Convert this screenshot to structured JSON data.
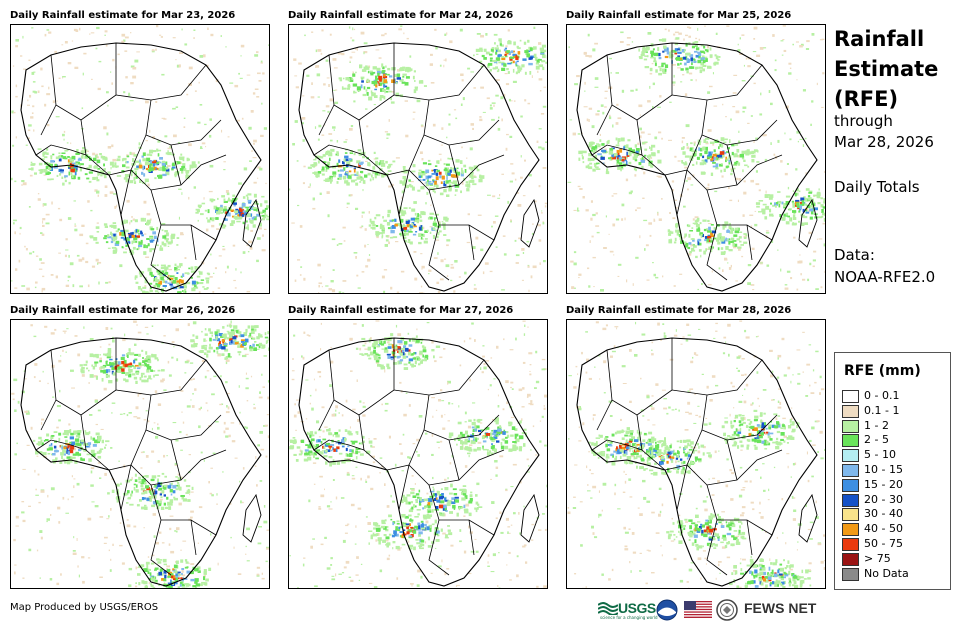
{
  "panels": [
    {
      "title": "Daily Rainfall estimate for Mar 23, 2026"
    },
    {
      "title": "Daily Rainfall estimate for Mar 24, 2026"
    },
    {
      "title": "Daily Rainfall estimate for Mar 25, 2026"
    },
    {
      "title": "Daily Rainfall estimate for Mar 26, 2026"
    },
    {
      "title": "Daily Rainfall estimate for Mar 27, 2026"
    },
    {
      "title": "Daily Rainfall estimate for Mar 28, 2026"
    }
  ],
  "side": {
    "title_line1": "Rainfall",
    "title_line2": "Estimate",
    "title_line3": "(RFE)",
    "through": "through",
    "date": "Mar 28, 2026",
    "totals": "Daily Totals",
    "data_label": "Data:",
    "data_source": "NOAA-RFE2.0"
  },
  "legend": {
    "title": "RFE (mm)",
    "items": [
      {
        "label": "0 - 0.1",
        "color": "#ffffff"
      },
      {
        "label": "0.1 - 1",
        "color": "#efdcc2"
      },
      {
        "label": "1 - 2",
        "color": "#b7f0a3"
      },
      {
        "label": "2 - 5",
        "color": "#69e35a"
      },
      {
        "label": "5 - 10",
        "color": "#b4eef2"
      },
      {
        "label": "10 - 15",
        "color": "#7fb8ec"
      },
      {
        "label": "15 - 20",
        "color": "#3d8fe2"
      },
      {
        "label": "20 - 30",
        "color": "#1552c7"
      },
      {
        "label": "30 - 40",
        "color": "#f8e38b"
      },
      {
        "label": "40 - 50",
        "color": "#f29a16"
      },
      {
        "label": "50 - 75",
        "color": "#ea3a0d"
      },
      {
        "label": "> 75",
        "color": "#9b1414"
      },
      {
        "label": "No Data",
        "color": "#8a8a8a"
      }
    ]
  },
  "footer": {
    "credit": "Map Produced by USGS/EROS"
  },
  "logos": {
    "usgs": "USGS",
    "usgs_tagline": "science for a changing world",
    "fews": "FEWS NET"
  }
}
